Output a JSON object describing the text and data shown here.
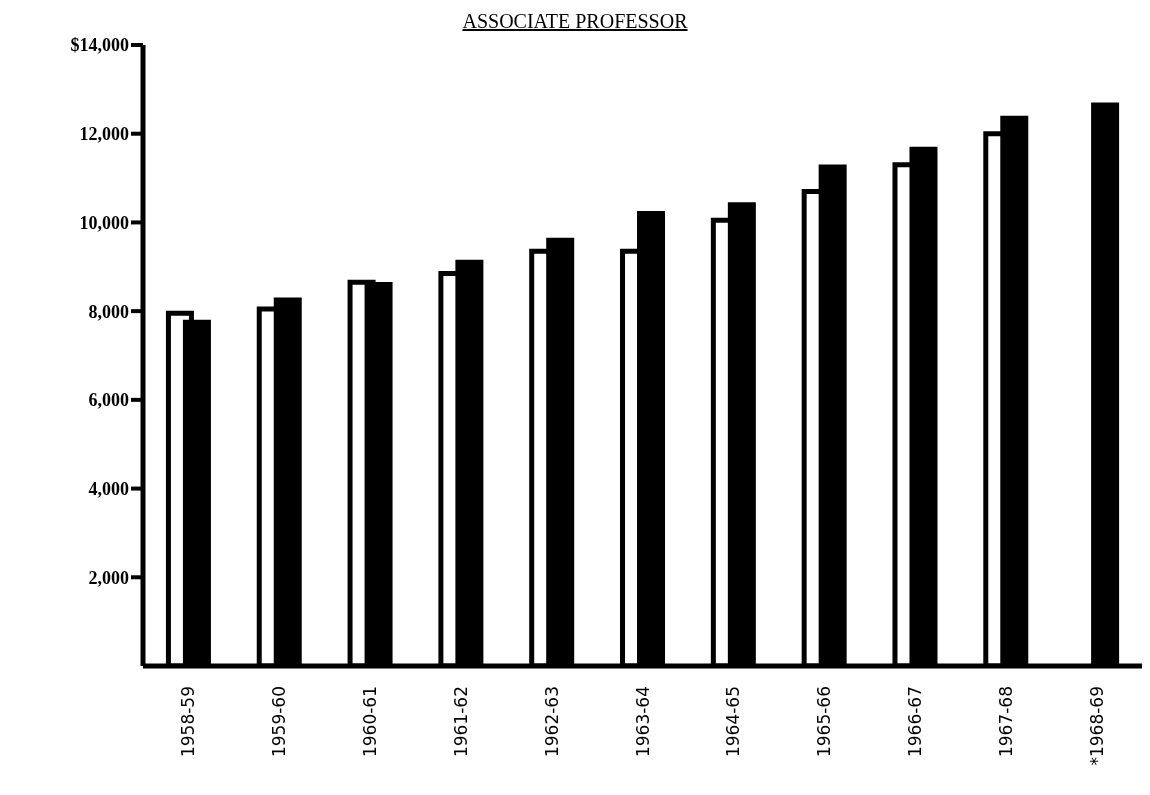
{
  "chart_data": {
    "type": "bar",
    "title": "ASSOCIATE PROFESSOR",
    "categories": [
      "1958-59",
      "1959-60",
      "1960-61",
      "1961-62",
      "1962-63",
      "1963-64",
      "1964-65",
      "1965-66",
      "1966-67",
      "1967-68",
      "*1968-69"
    ],
    "series": [
      {
        "color": "#ffffff",
        "values": [
          7950,
          8050,
          8650,
          8850,
          9350,
          9350,
          10050,
          10700,
          11300,
          12000,
          null
        ]
      },
      {
        "color": "#000000",
        "values": [
          7750,
          8250,
          8600,
          9100,
          9600,
          10200,
          10400,
          11250,
          11650,
          12350,
          12650
        ]
      }
    ],
    "ylim": [
      0,
      14000
    ],
    "yticks": [
      {
        "value": 2000,
        "label": "2,000"
      },
      {
        "value": 4000,
        "label": "4,000"
      },
      {
        "value": 6000,
        "label": "6,000"
      },
      {
        "value": 8000,
        "label": "8,000"
      },
      {
        "value": 10000,
        "label": "10,000"
      },
      {
        "value": 12000,
        "label": "12,000"
      },
      {
        "value": 14000,
        "label": "$14,000"
      }
    ],
    "grid": false,
    "legend": false
  }
}
